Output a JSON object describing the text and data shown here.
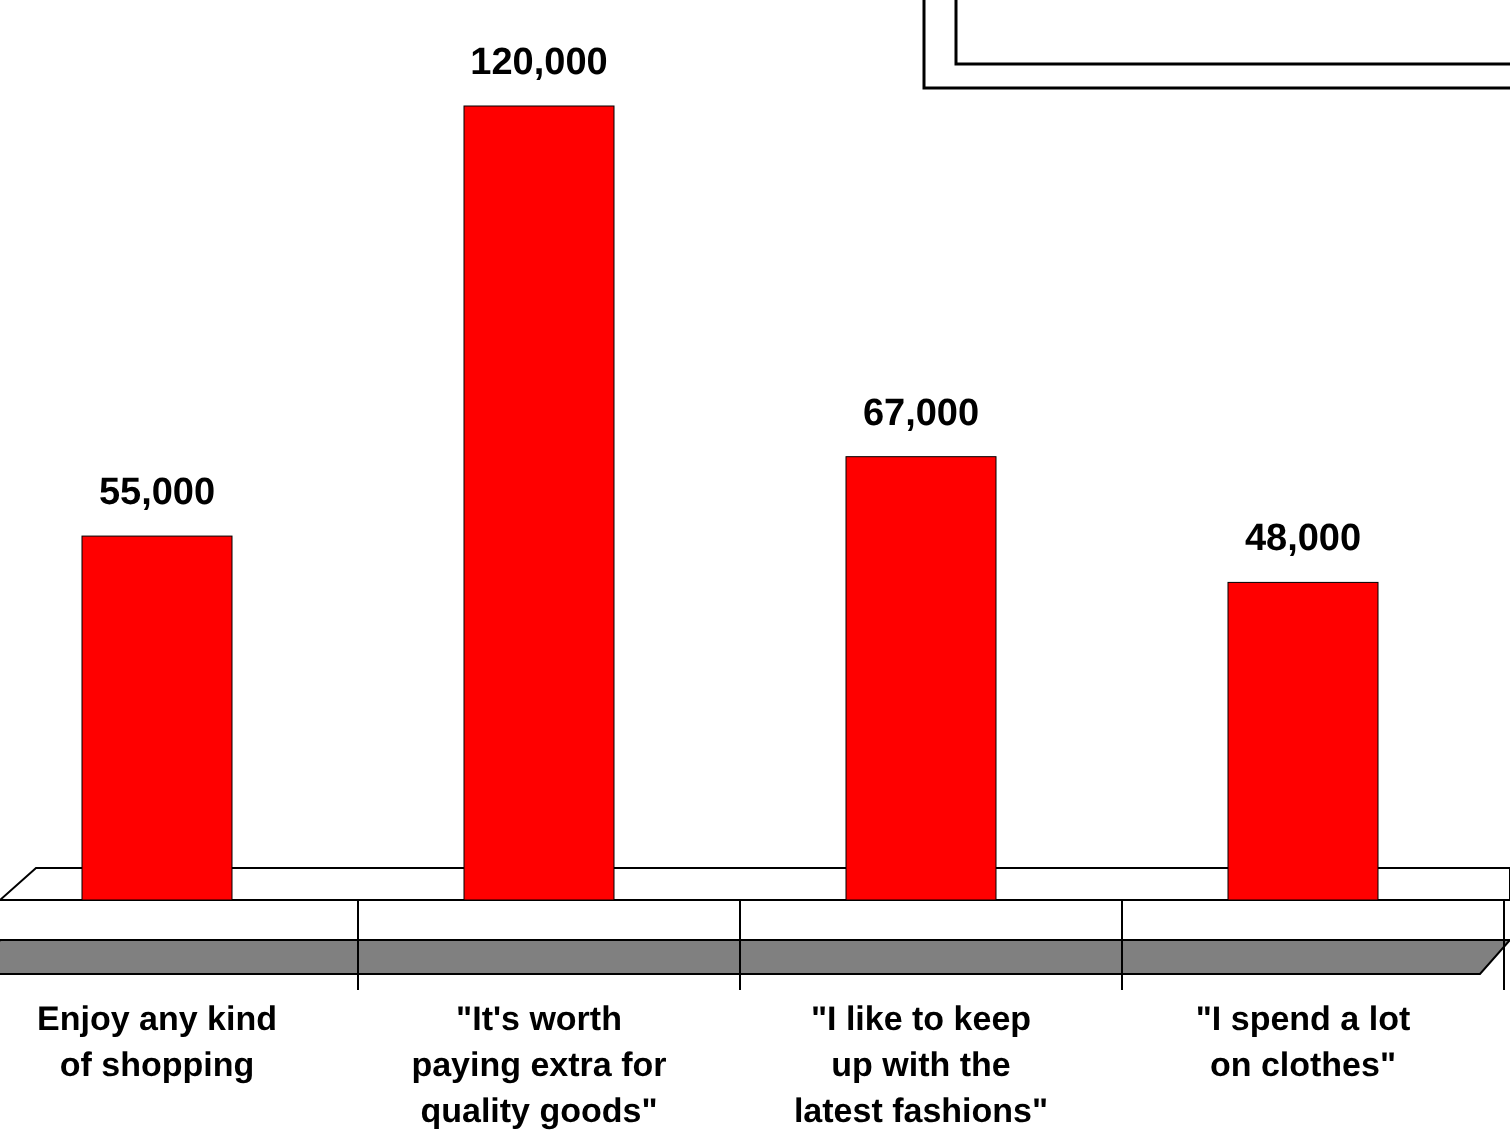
{
  "chart_data": {
    "type": "bar",
    "categories": [
      "Enjoy any kind of shopping",
      "\"It's worth paying extra for quality goods\"",
      "\"I like to keep up with the latest fashions\"",
      "\"I spend a lot on clothes\""
    ],
    "values": [
      55000,
      120000,
      67000,
      48000
    ],
    "value_labels": [
      "55,000",
      "120,000",
      "67,000",
      "48,000"
    ],
    "color": "#ff0000"
  }
}
